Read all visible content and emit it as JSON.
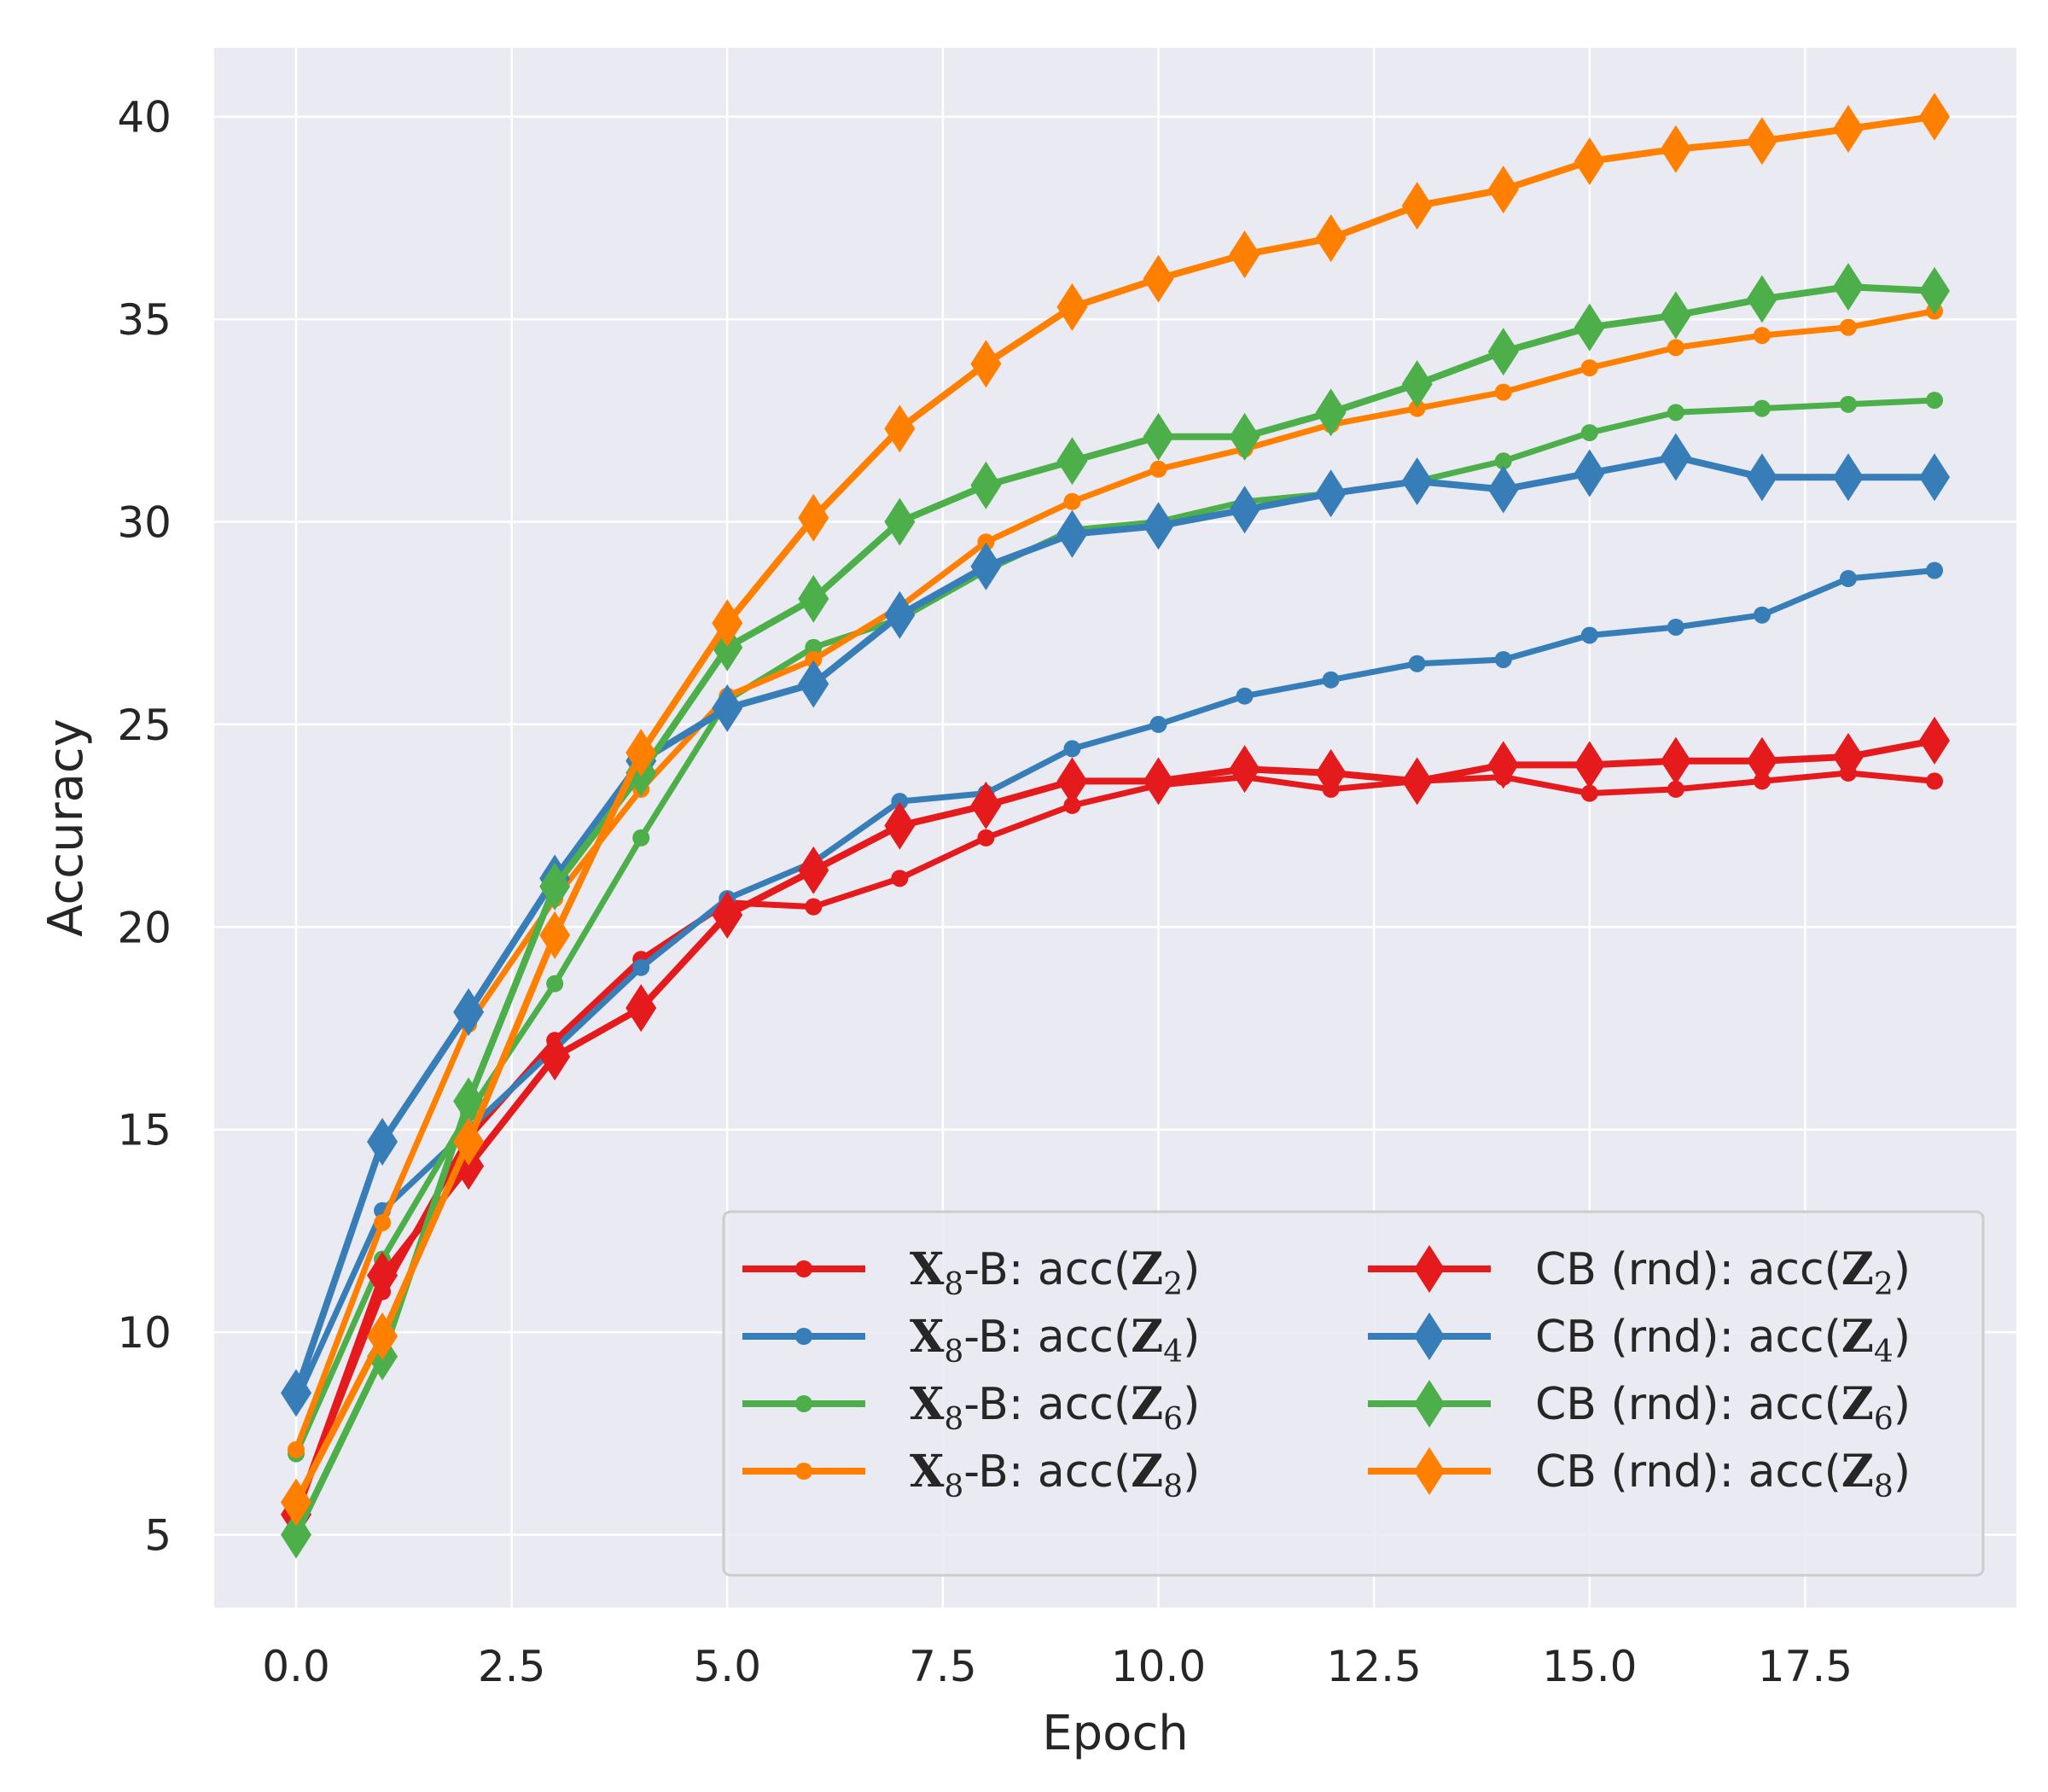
{
  "chart_data": {
    "type": "line",
    "title": "",
    "xlabel": "Epoch",
    "ylabel": "Accuracy",
    "xlim": [
      -0.95,
      19.95
    ],
    "ylim": [
      3.2,
      41.7
    ],
    "xticks": [
      "0.0",
      "2.5",
      "5.0",
      "7.5",
      "10.0",
      "12.5",
      "15.0",
      "17.5"
    ],
    "xtick_values": [
      0,
      2.5,
      5,
      7.5,
      10,
      12.5,
      15,
      17.5
    ],
    "yticks": [
      "5",
      "10",
      "15",
      "20",
      "25",
      "30",
      "35",
      "40"
    ],
    "ytick_values": [
      5,
      10,
      15,
      20,
      25,
      30,
      35,
      40
    ],
    "grid": true,
    "legend_position": "lower-right",
    "x": [
      0,
      1,
      2,
      3,
      4,
      5,
      6,
      7,
      8,
      9,
      10,
      11,
      12,
      13,
      14,
      15,
      16,
      17,
      18,
      19
    ],
    "series": [
      {
        "name": "X8-B: acc(Z2)",
        "label_parts": [
          "X",
          "8",
          "-B: acc(",
          "Z",
          "2",
          ")"
        ],
        "color": "#e41a1c",
        "marker": "circle",
        "values": [
          5.6,
          11.0,
          14.8,
          17.2,
          19.2,
          20.6,
          20.5,
          21.2,
          22.2,
          23.0,
          23.5,
          23.7,
          23.4,
          23.6,
          23.7,
          23.3,
          23.4,
          23.6,
          23.8,
          23.6
        ]
      },
      {
        "name": "X8-B: acc(Z4)",
        "label_parts": [
          "X",
          "8",
          "-B: acc(",
          "Z",
          "4",
          ")"
        ],
        "color": "#377eb8",
        "marker": "circle",
        "values": [
          8.3,
          13.0,
          15.0,
          17.0,
          19.0,
          20.7,
          21.6,
          23.1,
          23.3,
          24.4,
          25.0,
          25.7,
          26.1,
          26.5,
          26.6,
          27.2,
          27.4,
          27.7,
          28.6,
          28.8
        ]
      },
      {
        "name": "X8-B: acc(Z6)",
        "label_parts": [
          "X",
          "8",
          "-B: acc(",
          "Z",
          "6",
          ")"
        ],
        "color": "#4daf4a",
        "marker": "circle",
        "values": [
          7.0,
          11.8,
          15.4,
          18.6,
          22.2,
          25.6,
          26.9,
          27.6,
          28.8,
          29.8,
          30.0,
          30.5,
          30.7,
          31.0,
          31.5,
          32.2,
          32.7,
          32.8,
          32.9,
          33.0
        ]
      },
      {
        "name": "X8-B: acc(Z8)",
        "label_parts": [
          "X",
          "8",
          "-B: acc(",
          "Z",
          "8",
          ")"
        ],
        "color": "#ff7f00",
        "marker": "circle",
        "values": [
          7.1,
          12.7,
          17.6,
          20.7,
          23.4,
          25.7,
          26.6,
          27.9,
          29.5,
          30.5,
          31.3,
          31.8,
          32.4,
          32.8,
          33.2,
          33.8,
          34.3,
          34.6,
          34.8,
          35.2
        ]
      },
      {
        "name": "CB (rnd): acc(Z2)",
        "label_parts": [
          "CB (rnd): acc(",
          "Z",
          "2",
          ")"
        ],
        "color": "#e41a1c",
        "marker": "diamond",
        "values": [
          5.5,
          11.4,
          14.1,
          16.8,
          18.0,
          20.3,
          21.4,
          22.5,
          23.0,
          23.6,
          23.6,
          23.9,
          23.8,
          23.6,
          24.0,
          24.0,
          24.1,
          24.1,
          24.2,
          24.6
        ]
      },
      {
        "name": "CB (rnd): acc(Z4)",
        "label_parts": [
          "CB (rnd): acc(",
          "Z",
          "4",
          ")"
        ],
        "color": "#377eb8",
        "marker": "diamond",
        "values": [
          8.5,
          14.7,
          17.9,
          21.2,
          24.1,
          25.4,
          26.0,
          27.7,
          28.9,
          29.7,
          29.9,
          30.3,
          30.7,
          31.0,
          30.8,
          31.2,
          31.6,
          31.1,
          31.1,
          31.1
        ]
      },
      {
        "name": "CB (rnd): acc(Z6)",
        "label_parts": [
          "CB (rnd): acc(",
          "Z",
          "6",
          ")"
        ],
        "color": "#4daf4a",
        "marker": "diamond",
        "values": [
          5.0,
          9.4,
          15.7,
          21.0,
          23.8,
          26.9,
          28.1,
          30.0,
          30.9,
          31.5,
          32.1,
          32.1,
          32.7,
          33.4,
          34.2,
          34.8,
          35.1,
          35.5,
          35.8,
          35.7
        ]
      },
      {
        "name": "CB (rnd): acc(Z8)",
        "label_parts": [
          "CB (rnd): acc(",
          "Z",
          "8",
          ")"
        ],
        "color": "#ff7f00",
        "marker": "diamond",
        "values": [
          5.8,
          9.9,
          14.7,
          19.8,
          24.3,
          27.5,
          30.1,
          32.3,
          33.9,
          35.3,
          36.0,
          36.6,
          37.0,
          37.8,
          38.2,
          38.9,
          39.2,
          39.4,
          39.7,
          40.0
        ]
      }
    ]
  }
}
